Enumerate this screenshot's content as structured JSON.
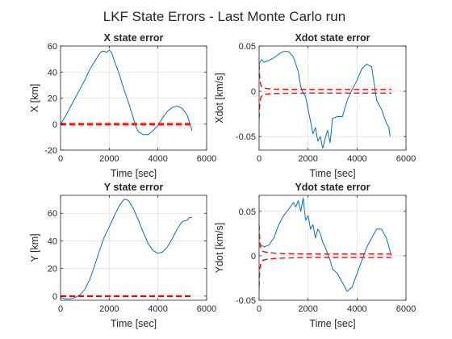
{
  "figure": {
    "suptitle": "LKF State Errors - Last Monte Carlo run",
    "colors": {
      "error_line": "#0072BD",
      "bound_line": "#FF0000",
      "grid": "#DFDFDF",
      "axes": "#262626"
    }
  },
  "chart_data": [
    {
      "type": "line",
      "title": "X state error",
      "xlabel": "Time [sec]",
      "ylabel": "X [km]",
      "xlim": [
        0,
        6000
      ],
      "ylim": [
        -20,
        60
      ],
      "xticks": [
        0,
        2000,
        4000,
        6000
      ],
      "yticks": [
        -20,
        0,
        20,
        40,
        60
      ],
      "grid": true,
      "series": [
        {
          "role": "error",
          "style": "solid",
          "x": [
            0,
            200,
            400,
            600,
            800,
            1000,
            1200,
            1400,
            1600,
            1700,
            1800,
            1900,
            2000,
            2100,
            2200,
            2400,
            2600,
            2800,
            3000,
            3100,
            3200,
            3400,
            3600,
            3800,
            4000,
            4200,
            4400,
            4600,
            4800,
            5000,
            5200,
            5300,
            5400
          ],
          "y": [
            0,
            6,
            13,
            20,
            27,
            34,
            42,
            48,
            54,
            56,
            56,
            55,
            57,
            55,
            49,
            39,
            27,
            16,
            4,
            -2,
            -6,
            -8,
            -8,
            -5,
            -1,
            5,
            10,
            13,
            14,
            12,
            7,
            1,
            -5
          ]
        },
        {
          "role": "bound",
          "style": "dashed",
          "x": [
            0,
            5400
          ],
          "y": [
            0.5,
            0.5
          ]
        },
        {
          "role": "bound",
          "style": "dashed",
          "x": [
            0,
            5400
          ],
          "y": [
            -0.5,
            -0.5
          ]
        }
      ]
    },
    {
      "type": "line",
      "title": "Xdot state error",
      "xlabel": "Time [sec]",
      "ylabel": "Xdot [km/s]",
      "xlim": [
        0,
        6000
      ],
      "ylim": [
        -0.065,
        0.05
      ],
      "xticks": [
        0,
        2000,
        4000,
        6000
      ],
      "yticks": [
        -0.05,
        0,
        0.05
      ],
      "grid": true,
      "series": [
        {
          "role": "error",
          "style": "solid",
          "x": [
            0,
            100,
            200,
            400,
            600,
            800,
            1000,
            1200,
            1400,
            1600,
            1700,
            1800,
            1900,
            2000,
            2100,
            2200,
            2300,
            2400,
            2500,
            2600,
            2700,
            2800,
            2900,
            3000,
            3200,
            3400,
            3600,
            3800,
            4000,
            4200,
            4400,
            4600,
            4800,
            5000,
            5200,
            5300,
            5350
          ],
          "y": [
            0.03,
            0.035,
            0.032,
            0.034,
            0.037,
            0.041,
            0.044,
            0.044,
            0.038,
            0.022,
            0.005,
            -0.002,
            -0.006,
            -0.02,
            -0.033,
            -0.047,
            -0.04,
            -0.055,
            -0.05,
            -0.063,
            -0.052,
            -0.043,
            -0.057,
            -0.03,
            -0.028,
            -0.028,
            -0.01,
            0.002,
            0.012,
            0.025,
            0.03,
            0.027,
            -0.01,
            -0.02,
            -0.035,
            -0.04,
            -0.05
          ]
        },
        {
          "role": "bound",
          "style": "dashed",
          "x": [
            0,
            30,
            80,
            150,
            300,
            600,
            1000,
            2000,
            4000,
            5400
          ],
          "y": [
            0.03,
            0.012,
            0.006,
            0.004,
            0.003,
            0.0025,
            0.0022,
            0.002,
            0.002,
            0.002
          ]
        },
        {
          "role": "bound",
          "style": "dashed",
          "x": [
            0,
            30,
            80,
            150,
            300,
            600,
            1000,
            2000,
            4000,
            5400
          ],
          "y": [
            -0.03,
            -0.012,
            -0.006,
            -0.004,
            -0.003,
            -0.0025,
            -0.0022,
            -0.002,
            -0.002,
            -0.002
          ]
        }
      ]
    },
    {
      "type": "line",
      "title": "Y state error",
      "xlabel": "Time [sec]",
      "ylabel": "Y [km]",
      "xlim": [
        0,
        6000
      ],
      "ylim": [
        -3,
        73
      ],
      "xticks": [
        0,
        2000,
        4000,
        6000
      ],
      "yticks": [
        0,
        20,
        40,
        60
      ],
      "grid": true,
      "series": [
        {
          "role": "error",
          "style": "solid",
          "x": [
            0,
            200,
            400,
            600,
            800,
            1000,
            1200,
            1400,
            1600,
            1800,
            2000,
            2200,
            2400,
            2600,
            2700,
            2800,
            3000,
            3200,
            3400,
            3600,
            3800,
            4000,
            4200,
            4400,
            4600,
            4800,
            5000,
            5200,
            5300,
            5400
          ],
          "y": [
            -1,
            -2,
            -2,
            -1,
            1,
            5,
            12,
            22,
            33,
            43,
            50,
            58,
            65,
            70,
            70,
            69,
            63,
            55,
            46,
            38,
            33,
            31,
            32,
            36,
            42,
            49,
            54,
            55,
            57,
            57
          ]
        },
        {
          "role": "bound",
          "style": "dashed",
          "x": [
            0,
            5400
          ],
          "y": [
            0.3,
            0.3
          ]
        },
        {
          "role": "bound",
          "style": "dashed",
          "x": [
            0,
            5400
          ],
          "y": [
            -0.3,
            -0.3
          ]
        }
      ]
    },
    {
      "type": "line",
      "title": "Ydot state error",
      "xlabel": "Time [sec]",
      "ylabel": "Ydot [km/s]",
      "xlim": [
        0,
        6000
      ],
      "ylim": [
        -0.05,
        0.068
      ],
      "xticks": [
        0,
        2000,
        4000,
        6000
      ],
      "yticks": [
        -0.05,
        0,
        0.05
      ],
      "grid": true,
      "series": [
        {
          "role": "error",
          "style": "solid",
          "x": [
            0,
            100,
            200,
            400,
            600,
            800,
            1000,
            1200,
            1400,
            1500,
            1600,
            1700,
            1800,
            1900,
            2000,
            2100,
            2200,
            2300,
            2400,
            2500,
            2600,
            2700,
            2800,
            2900,
            3000,
            3200,
            3400,
            3600,
            3800,
            4000,
            4200,
            4400,
            4600,
            4800,
            5000,
            5200,
            5300,
            5400
          ],
          "y": [
            0.01,
            0.012,
            0.01,
            0.012,
            0.02,
            0.035,
            0.045,
            0.052,
            0.06,
            0.055,
            0.062,
            0.05,
            0.065,
            0.04,
            0.045,
            0.03,
            0.035,
            0.02,
            0.03,
            0.025,
            0.015,
            0.01,
            0.002,
            -0.005,
            -0.015,
            -0.02,
            -0.03,
            -0.04,
            -0.035,
            -0.02,
            -0.005,
            0.01,
            0.02,
            0.03,
            0.03,
            0.02,
            0.01,
            0
          ]
        },
        {
          "role": "bound",
          "style": "dashed",
          "x": [
            0,
            30,
            80,
            150,
            300,
            600,
            1000,
            2000,
            4000,
            5400
          ],
          "y": [
            0.035,
            0.014,
            0.008,
            0.005,
            0.004,
            0.003,
            0.0025,
            0.002,
            0.002,
            0.002
          ]
        },
        {
          "role": "bound",
          "style": "dashed",
          "x": [
            0,
            30,
            80,
            150,
            300,
            600,
            1000,
            2000,
            4000,
            5400
          ],
          "y": [
            -0.035,
            -0.014,
            -0.008,
            -0.005,
            -0.004,
            -0.003,
            -0.0025,
            -0.002,
            -0.002,
            -0.002
          ]
        }
      ]
    }
  ]
}
